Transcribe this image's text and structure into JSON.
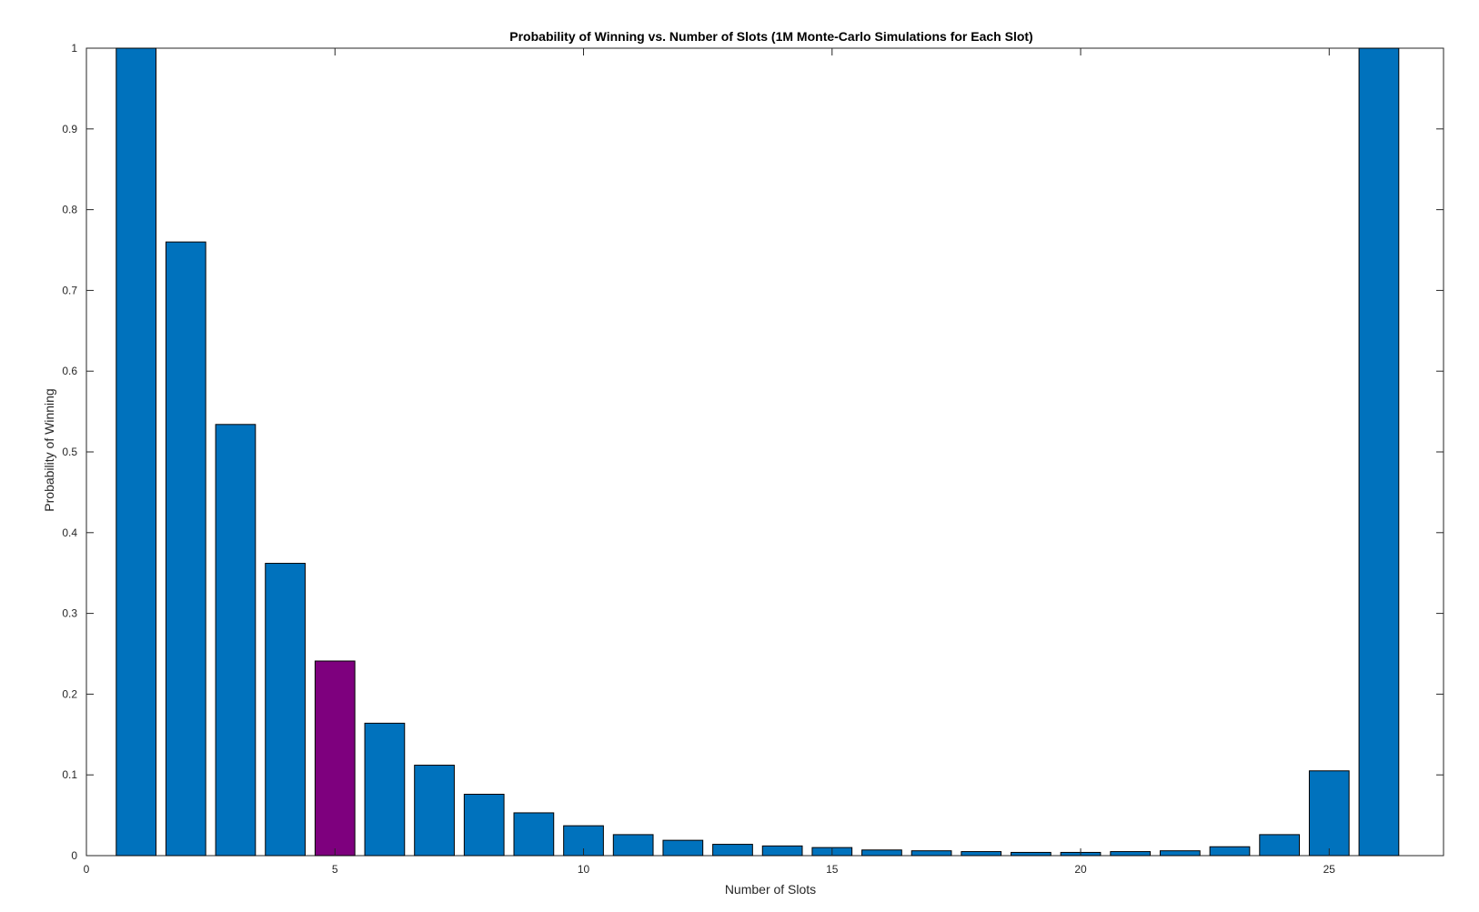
{
  "chart_data": {
    "type": "bar",
    "title": "Probability of Winning vs. Number of Slots (1M Monte-Carlo Simulations for Each Slot)",
    "xlabel": "Number of Slots",
    "ylabel": "Probability of Winning",
    "categories": [
      1,
      2,
      3,
      4,
      5,
      6,
      7,
      8,
      9,
      10,
      11,
      12,
      13,
      14,
      15,
      16,
      17,
      18,
      19,
      20,
      21,
      22,
      23,
      24,
      25,
      26
    ],
    "values": [
      1.0,
      0.76,
      0.534,
      0.362,
      0.241,
      0.164,
      0.112,
      0.076,
      0.053,
      0.037,
      0.026,
      0.019,
      0.014,
      0.012,
      0.01,
      0.007,
      0.006,
      0.005,
      0.004,
      0.004,
      0.005,
      0.006,
      0.011,
      0.026,
      0.105,
      1.0
    ],
    "highlight_index": 4,
    "xlim": [
      0,
      27.3
    ],
    "ylim": [
      0,
      1
    ],
    "xticks": [
      0,
      5,
      10,
      15,
      20,
      25
    ],
    "yticks": [
      0,
      0.1,
      0.2,
      0.3,
      0.4,
      0.5,
      0.6,
      0.7,
      0.8,
      0.9,
      1
    ],
    "ytick_labels": [
      "0",
      "0.1",
      "0.2",
      "0.3",
      "0.4",
      "0.5",
      "0.6",
      "0.7",
      "0.8",
      "0.9",
      "1"
    ],
    "xtick_labels": [
      "0",
      "5",
      "10",
      "15",
      "20",
      "25"
    ],
    "bar_color": "#0072BD",
    "highlight_color": "#7E007E",
    "edge_color": "#000000",
    "grid": false
  }
}
